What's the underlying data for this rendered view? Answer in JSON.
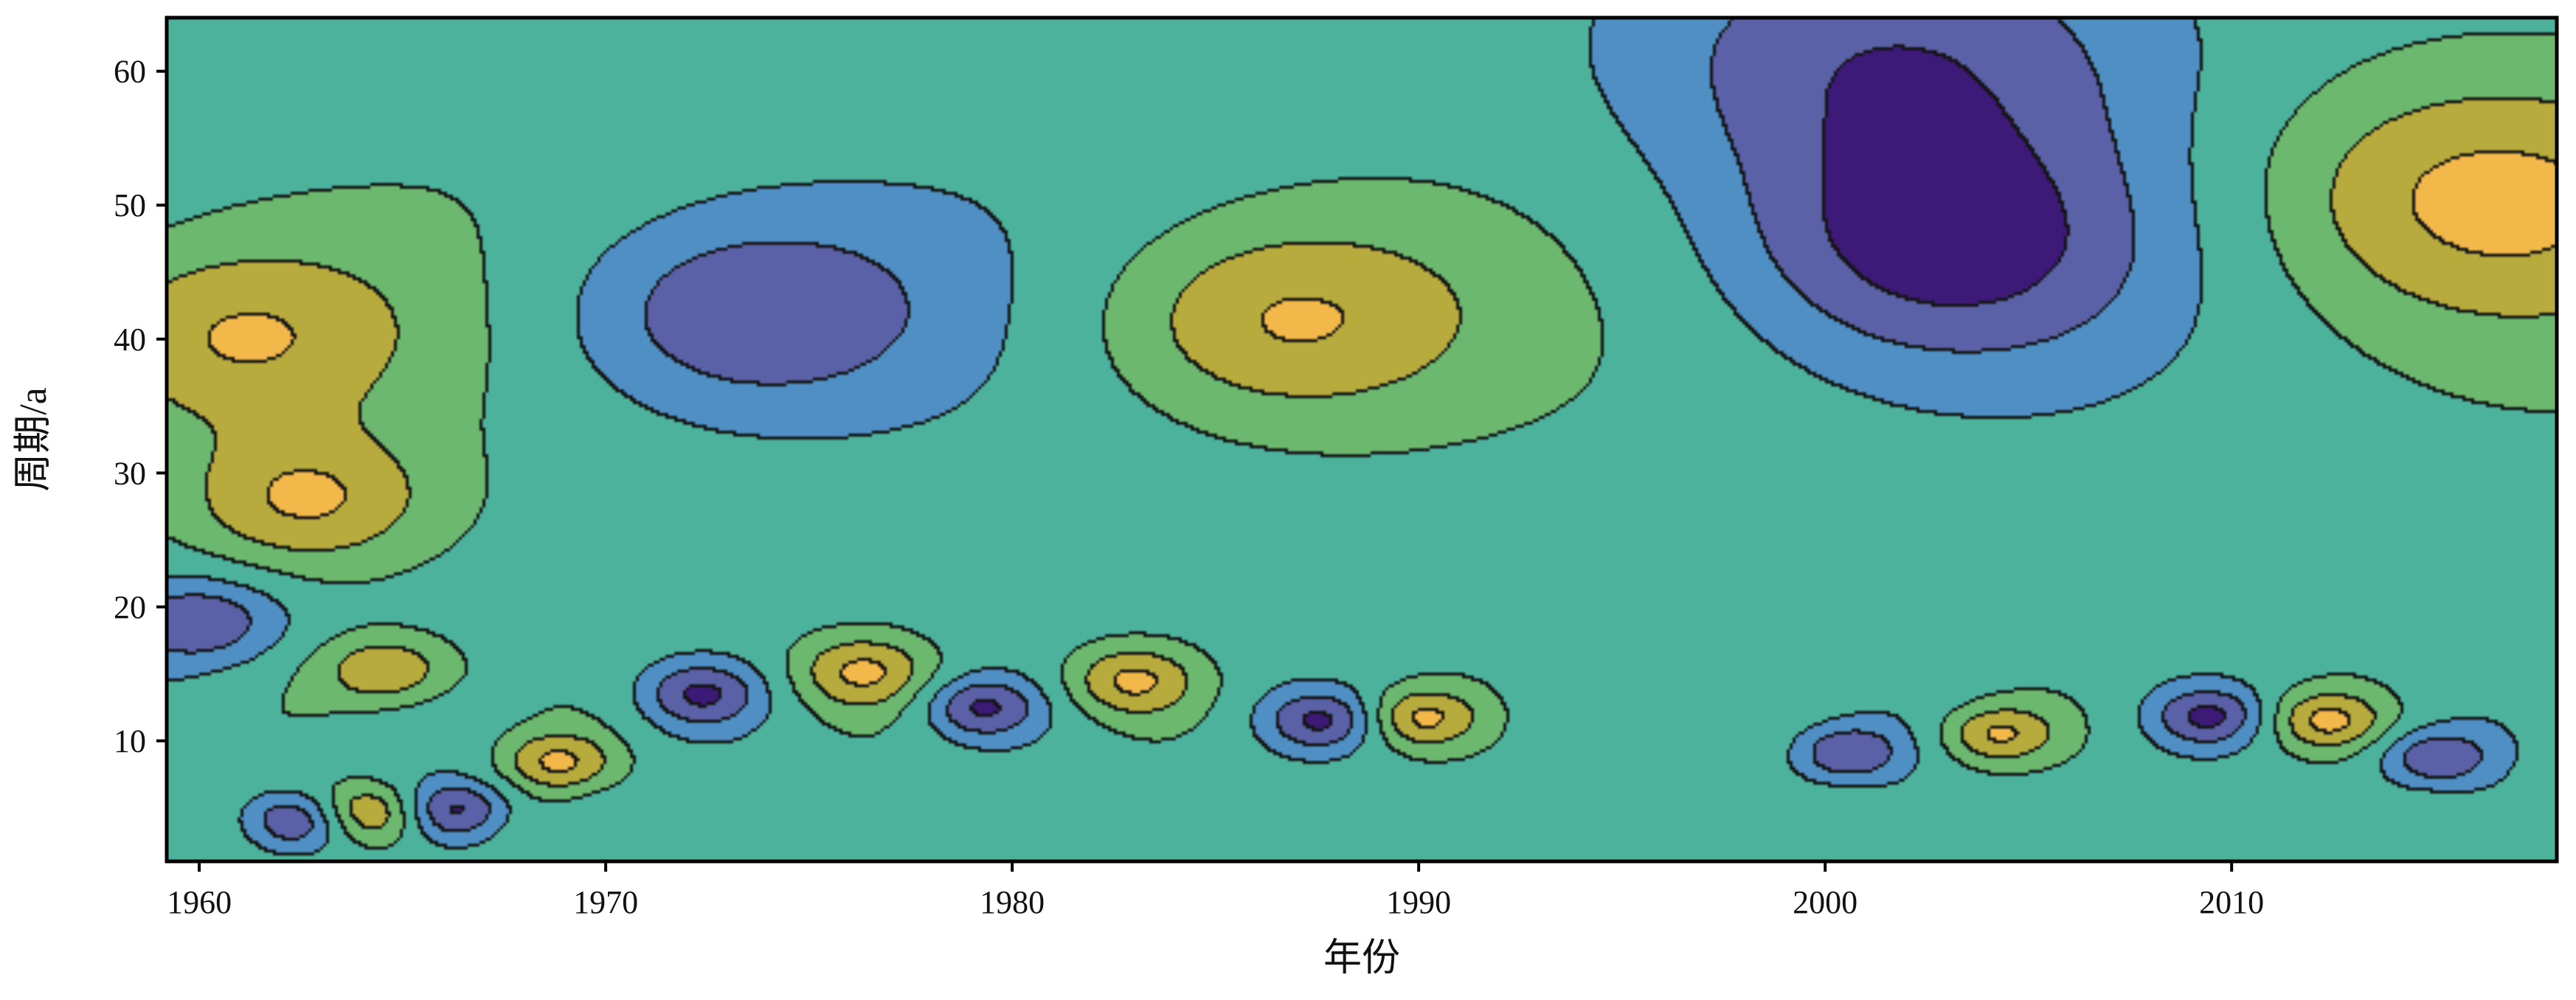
{
  "chart_data": {
    "type": "heatmap",
    "subtype": "filled-contour (wavelet real part)",
    "xlabel": "年份",
    "ylabel": "周期/a",
    "xlim": [
      1959.2,
      2018.0
    ],
    "ylim": [
      1,
      64
    ],
    "x_ticks": [
      1960,
      1970,
      1980,
      1990,
      2000,
      2010
    ],
    "x_tick_labels": [
      "1960",
      "1970",
      "1980",
      "1990",
      "2000",
      "2010"
    ],
    "y_ticks": [
      10,
      20,
      30,
      40,
      50,
      60
    ],
    "y_tick_labels": [
      "10",
      "20",
      "30",
      "40",
      "50",
      "60"
    ],
    "grid": false,
    "legend": "none",
    "colormap": [
      "#3d1a78",
      "#5a61a6",
      "#4f8fc4",
      "#4db29c",
      "#6cb86f",
      "#b8ab3e",
      "#f2b84a"
    ],
    "contour_line_color": "#000000",
    "dominant_periods_years": [
      42,
      14,
      6
    ],
    "features": [
      {
        "x": 1960.7,
        "y": 40.2,
        "level": "high"
      },
      {
        "x": 1973.3,
        "y": 42.0,
        "level": "low"
      },
      {
        "x": 1986.5,
        "y": 41.5,
        "level": "high"
      },
      {
        "x": 2002.8,
        "y": 46.8,
        "level": "low"
      },
      {
        "x": 2016.2,
        "y": 50.8,
        "level": "high"
      },
      {
        "x": 1972.3,
        "y": 13.6,
        "level": "low"
      },
      {
        "x": 1976.3,
        "y": 15.3,
        "level": "high"
      },
      {
        "x": 1979.2,
        "y": 12.6,
        "level": "low"
      },
      {
        "x": 1982.9,
        "y": 14.6,
        "level": "high"
      },
      {
        "x": 1987.6,
        "y": 11.6,
        "level": "low"
      },
      {
        "x": 1990.0,
        "y": 11.8,
        "level": "high"
      },
      {
        "x": 2000.5,
        "y": 9.2,
        "level": "low"
      },
      {
        "x": 2004.2,
        "y": 10.6,
        "level": "high"
      },
      {
        "x": 2009.4,
        "y": 11.9,
        "level": "low"
      },
      {
        "x": 2012.3,
        "y": 11.6,
        "level": "high"
      },
      {
        "x": 2015.0,
        "y": 8.8,
        "level": "low"
      },
      {
        "x": 1964.6,
        "y": 15.3,
        "level": "high"
      },
      {
        "x": 1966.2,
        "y": 5.0,
        "level": "low"
      },
      {
        "x": 1964.0,
        "y": 4.8,
        "level": "high"
      },
      {
        "x": 1962.3,
        "y": 4.2,
        "level": "low"
      },
      {
        "x": 1968.8,
        "y": 8.5,
        "level": "high"
      },
      {
        "x": 1960.0,
        "y": 19.0,
        "level": "low"
      },
      {
        "x": 1962.6,
        "y": 28.0,
        "level": "high"
      },
      {
        "x": 2001.5,
        "y": 60.5,
        "level": "low"
      }
    ]
  }
}
